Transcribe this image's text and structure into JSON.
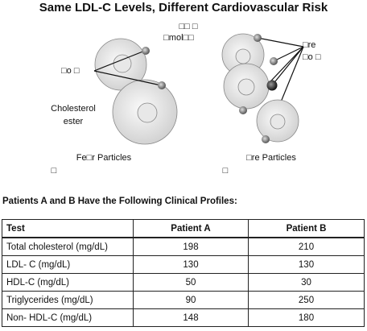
{
  "diagram": {
    "title": "Same LDL-C Levels, Different Cardiovascular Risk",
    "top_label_1": "□□ □",
    "top_label_2": "□mol□□",
    "left_label": "□o □",
    "cholesterol_label_1": "Cholesterol",
    "cholesterol_label_2": "ester",
    "right_label_1": "□re",
    "right_label_2": "□o □",
    "left_caption": "Fe□r Particles",
    "right_caption": "□re Particles",
    "left_mark": "□",
    "right_mark": "□"
  },
  "subtitle": "Patients A and B Have the Following Clinical Profiles:",
  "table": {
    "header": [
      "Test",
      "Patient A",
      "Patient B"
    ],
    "rows": [
      [
        "Total cholesterol (mg/dL)",
        "198",
        "210"
      ],
      [
        "LDL- C (mg/dL)",
        "130",
        "130"
      ],
      [
        "HDL-C (mg/dL)",
        "50",
        "30"
      ],
      [
        "Triglycerides (mg/dL)",
        "90",
        "250"
      ],
      [
        "Non- HDL-C (mg/dL)",
        "148",
        "180"
      ]
    ]
  }
}
